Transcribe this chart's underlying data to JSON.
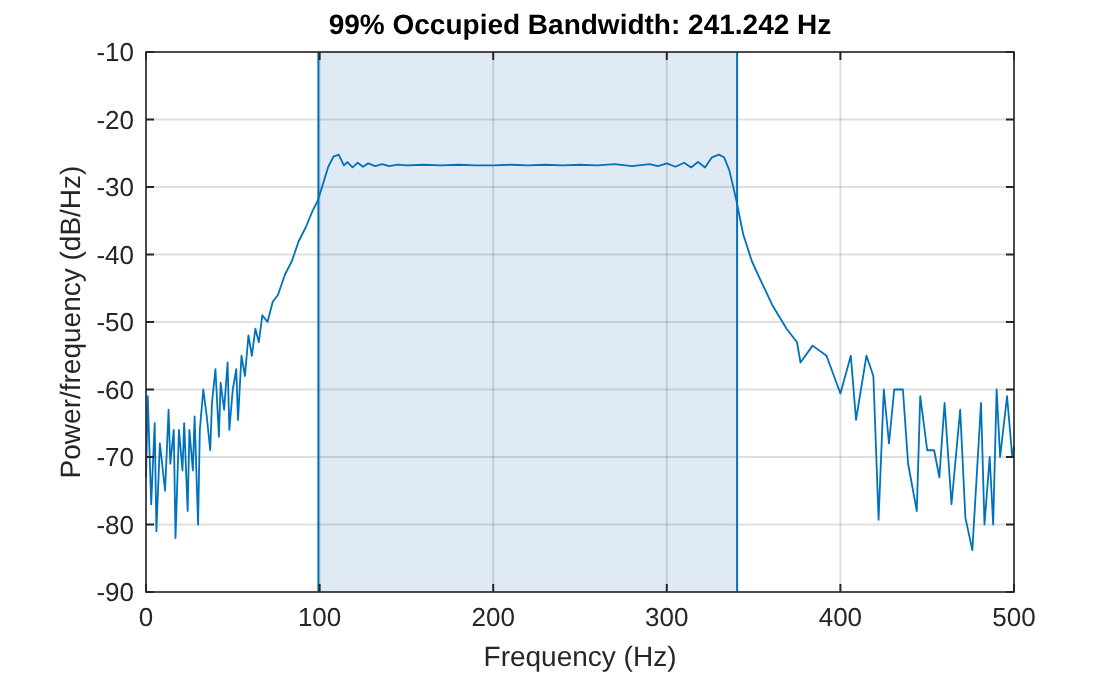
{
  "chart_data": {
    "type": "line",
    "title": "99% Occupied Bandwidth: 241.242 Hz",
    "xlabel": "Frequency (Hz)",
    "ylabel": "Power/frequency (dB/Hz)",
    "xlim": [
      0,
      500
    ],
    "xticks": [
      0,
      100,
      200,
      300,
      400,
      500
    ],
    "ylim": [
      -90,
      -10
    ],
    "yticks": [
      -90,
      -80,
      -70,
      -60,
      -50,
      -40,
      -30,
      -20,
      -10
    ],
    "grid": true,
    "ref_lines": [
      {
        "axis": "x",
        "value": 99.3,
        "color": "#0072bd"
      },
      {
        "axis": "x",
        "value": 340.5,
        "color": "#0072bd"
      }
    ],
    "bands": [
      {
        "axis": "x",
        "from": 99.3,
        "to": 340.5,
        "color": "#dfeaf5"
      }
    ],
    "x": [
      0,
      1,
      3,
      5,
      6,
      8,
      11,
      13,
      14,
      16,
      17,
      19,
      21,
      22,
      24,
      25,
      27,
      28,
      30,
      31,
      33,
      35,
      37,
      38,
      40,
      42,
      43,
      45,
      47,
      48,
      50,
      52,
      53,
      55,
      57,
      59,
      61,
      63,
      65,
      67,
      70,
      73,
      76,
      80,
      84,
      88,
      92,
      96,
      99,
      102,
      105,
      108,
      111,
      114,
      116,
      119,
      122,
      125,
      128,
      132,
      136,
      140,
      145,
      150,
      160,
      170,
      180,
      190,
      200,
      210,
      220,
      230,
      240,
      250,
      260,
      270,
      280,
      290,
      295,
      300,
      305,
      310,
      314,
      318,
      322,
      326,
      330,
      333,
      336,
      340,
      344,
      349,
      354,
      361,
      369,
      375,
      377,
      384,
      392,
      400,
      406,
      409,
      415,
      419,
      422,
      425,
      428,
      431,
      436,
      439,
      444,
      446,
      450,
      454,
      457,
      460,
      464,
      469,
      472,
      476,
      481,
      483,
      486,
      488,
      490,
      492,
      496,
      499,
      500
    ],
    "series": [
      {
        "color": "#0072bd",
        "values": [
          -73,
          -61,
          -77,
          -65,
          -81,
          -68,
          -75,
          -63,
          -71,
          -66,
          -82,
          -66,
          -72,
          -65,
          -78,
          -66,
          -72,
          -64,
          -80,
          -66,
          -60,
          -64,
          -69,
          -62,
          -57,
          -67,
          -59,
          -63,
          -56,
          -66,
          -60,
          -57,
          -64.5,
          -55,
          -58,
          -52,
          -55,
          -51,
          -53,
          -49,
          -50,
          -47,
          -46,
          -43,
          -41,
          -38,
          -36,
          -33.5,
          -32,
          -29.5,
          -27,
          -25.5,
          -25.2,
          -26.8,
          -26.3,
          -27.1,
          -26.4,
          -27,
          -26.5,
          -26.9,
          -26.6,
          -26.9,
          -26.7,
          -26.8,
          -26.7,
          -26.8,
          -26.7,
          -26.8,
          -26.8,
          -26.7,
          -26.8,
          -26.7,
          -26.8,
          -26.7,
          -26.8,
          -26.6,
          -26.9,
          -26.6,
          -26.9,
          -26.5,
          -27,
          -26.4,
          -27.1,
          -26.3,
          -27.1,
          -25.6,
          -25.2,
          -25.6,
          -27.5,
          -31.9,
          -37,
          -41,
          -43.8,
          -47.6,
          -51,
          -53,
          -56,
          -53.5,
          -55,
          -60.6,
          -55,
          -64.5,
          -55,
          -58,
          -79.3,
          -60,
          -68,
          -60,
          -60,
          -71,
          -78,
          -61,
          -69,
          -69,
          -73,
          -62,
          -77,
          -63,
          -79,
          -83.8,
          -62,
          -80,
          -70,
          -80,
          -60,
          -70,
          -61,
          -70,
          -68.4
        ]
      }
    ]
  }
}
